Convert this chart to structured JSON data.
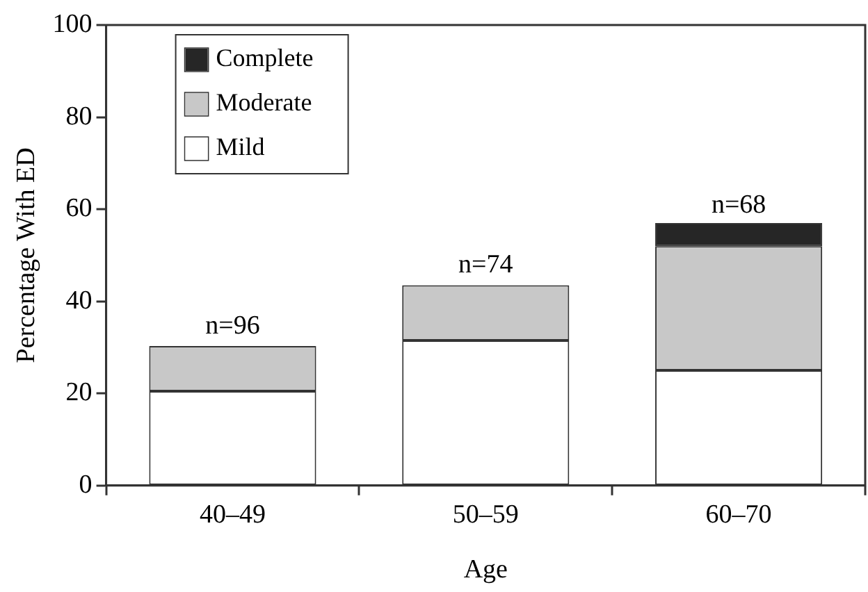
{
  "chart_data": {
    "type": "bar",
    "stacked": true,
    "xlabel": "Age",
    "ylabel": "Percentage With ED",
    "categories": [
      "40–49",
      "50–59",
      "60–70"
    ],
    "series": [
      {
        "name": "Mild",
        "color": "#ffffff",
        "values": [
          20.5,
          31.5,
          25
        ]
      },
      {
        "name": "Moderate",
        "color": "#c8c8c8",
        "values": [
          9.8,
          12,
          27
        ]
      },
      {
        "name": "Complete",
        "color": "#262626",
        "values": [
          0,
          0,
          5
        ]
      }
    ],
    "ylim": [
      0,
      100
    ],
    "yticks": [
      0,
      20,
      40,
      60,
      80,
      100
    ],
    "grid": false,
    "legend": "top left",
    "annotations": [
      {
        "text": "n=96",
        "x": "40–49",
        "y": 30.8
      },
      {
        "text": "n=74",
        "x": "50–59",
        "y": 44
      },
      {
        "text": "n=68",
        "x": "60–70",
        "y": 57
      }
    ]
  }
}
